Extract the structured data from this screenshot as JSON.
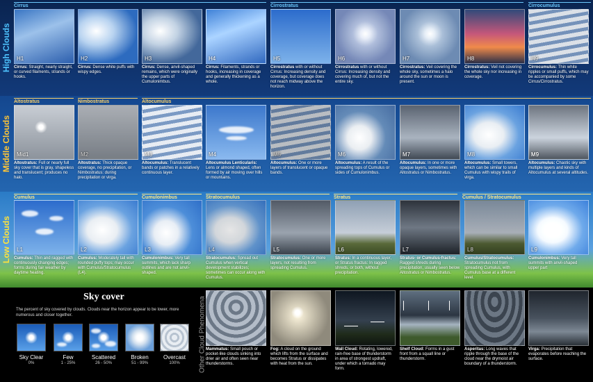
{
  "row_labels": {
    "high": "High Clouds",
    "middle": "Middle Clouds",
    "low": "Low Clouds",
    "other": "Other Cloud Phenomena"
  },
  "genera": {
    "cirrus": "Cirrus",
    "cirrostratus": "Cirrostratus",
    "cirrocumulus": "Cirrocumulus",
    "altostratus": "Altostratus",
    "nimbostratus": "Nimbostratus",
    "altocumulus": "Altocumulus",
    "cumulus": "Cumulus",
    "cumulonimbus": "Cumulonimbus",
    "stratocumulus": "Stratocumulus",
    "stratus": "Stratus",
    "cumulus_stratocumulus": "Cumulus / Stratocumulus"
  },
  "high": [
    {
      "code": "H1",
      "bold": "Cirrus:",
      "text": " Straight, nearly straight, or curved filaments, strands or hooks."
    },
    {
      "code": "H2",
      "bold": "Cirrus:",
      "text": " Dense white puffs with wispy edges."
    },
    {
      "code": "H3",
      "bold": "Cirrus:",
      "text": " Dense, anvil-shaped remains, which were originally the upper parts of Cumulonimbus."
    },
    {
      "code": "H4",
      "bold": "Cirrus:",
      "text": " Filaments, strands or hooks, increasing in coverage and generally thickening as a whole."
    },
    {
      "code": "H5",
      "bold": "Cirrostratus",
      "text": " with or without Cirrus: Increasing density and coverage, but coverage does not reach midway above the horizon."
    },
    {
      "code": "H6",
      "bold": "Cirrostratus",
      "text": " with or without Cirrus: Increasing density and covering much of, but not the entire sky."
    },
    {
      "code": "H7",
      "bold": "Cirrostratus:",
      "text": " Veil covering the whole sky, sometimes a halo around the sun or moon is present."
    },
    {
      "code": "H8",
      "bold": "Cirrostratus:",
      "text": " Veil not covering the whole sky nor increasing in coverage."
    },
    {
      "code": "H9",
      "bold": "Cirrocumulus:",
      "text": " Thin white ripples or small puffs, which may be accompanied by some Cirrus/Cirrostratus."
    }
  ],
  "middle": [
    {
      "code": "Mid1",
      "bold": "Altostratus:",
      "text": " Full or nearly full sky cover that is gray, shapeless and translucent; produces no halo."
    },
    {
      "code": "M2",
      "bold": "Altostratus:",
      "text": " Thick opaque coverage, no precipitation, or Nimbostratus: during precipitation or virga."
    },
    {
      "code": "M3",
      "bold": "Altocumulus:",
      "text": " Translucent bands or patches in a relatively continuous layer."
    },
    {
      "code": "M4",
      "bold": "Altocumulus Lenticularis:",
      "text": " Lens or almond shaped, often formed by air moving over hills or mountains."
    },
    {
      "code": "M5",
      "bold": "Altocumulus:",
      "text": " One or more layers of translucent or opaque bands."
    },
    {
      "code": "M6",
      "bold": "Altocumulus:",
      "text": " A result of the spreading tops of Cumulus or sides of Cumulonimbus."
    },
    {
      "code": "M7",
      "bold": "Altocumulus:",
      "text": " In one or more opaque layers, sometimes with Altostratus or Nimbostratus."
    },
    {
      "code": "M8",
      "bold": "Altocumulus:",
      "text": " Small towers, which can be similar to small Cumulus with wispy trails of virga."
    },
    {
      "code": "M9",
      "bold": "Altocumulus:",
      "text": " Chaotic sky with multiple layers and kinds of Altocumulus at several altitudes."
    }
  ],
  "low": [
    {
      "code": "L1",
      "bold": "Cumulus:",
      "text": " Thin and ragged with continuously changing edges; forms during fair weather by daytime heating."
    },
    {
      "code": "L2",
      "bold": "Cumulus:",
      "text": " Moderately tall with rounded puffy tops; may occur with Cumulus/Stratocumulus (L4)."
    },
    {
      "code": "L3",
      "bold": "Cumulonimbus:",
      "text": " Very tall summits, which lack sharp outlines and are not anvil-shaped."
    },
    {
      "code": "L4",
      "bold": "Stratocumulus:",
      "text": " Spread out Cumulus when vertical development stabilizes; sometimes can occur along with Cumulus."
    },
    {
      "code": "L5",
      "bold": "Stratocumulus:",
      "text": " One or more layers, not resulting from spreading Cumulus."
    },
    {
      "code": "L6",
      "bold": "Stratus:",
      "text": " In a continuous layer, or Stratus fractus: In ragged shreds, or both, without precipitation."
    },
    {
      "code": "L7",
      "bold": "Stratus- or Cumulus-fractus:",
      "text": " Ragged shreds during precipitation, usually seen below Altostratus or Nimbostratus."
    },
    {
      "code": "L8",
      "bold": "Cumulus/Stratocumulus:",
      "text": " Stratocumulus not from spreading Cumulus, with Cumulus base at a different level."
    },
    {
      "code": "L9",
      "bold": "Cumulonimbus:",
      "text": " Very tall summits with anvil-shaped upper part"
    }
  ],
  "other": [
    {
      "bold": "Mammatus:",
      "text": " Small pouch or pocket-like clouds sinking into drier air and often seen near thunderstorms."
    },
    {
      "bold": "Fog:",
      "text": " A cloud on the ground which lifts from the surface and becomes Stratus or dissipates with heat from the sun."
    },
    {
      "bold": "Wall Cloud:",
      "text": " Rotating, lowered, rain-free base of thunderstorm in area of strongest updraft, under which a tornado may form."
    },
    {
      "bold": "Shelf Cloud:",
      "text": " Forms in a gust front from a squall line or thunderstorm."
    },
    {
      "bold": "Asperitas:",
      "text": " Long waves that ripple through the base of the cloud near the drymoist air boundary of a thunderstorm."
    },
    {
      "bold": "Virga:",
      "text": " Precipitation that evaporates before reaching the surface."
    }
  ],
  "sky_cover": {
    "title": "Sky cover",
    "description": "The percent of sky covered by clouds. Clouds near the horizon appear to be lower, more numerous and closer together.",
    "items": [
      {
        "name": "Sky Clear",
        "pct": "0%"
      },
      {
        "name": "Few",
        "pct": "1 - 25%"
      },
      {
        "name": "Scattered",
        "pct": "26 - 50%"
      },
      {
        "name": "Broken",
        "pct": "51 - 99%"
      },
      {
        "name": "Overcast",
        "pct": "100%"
      }
    ]
  }
}
